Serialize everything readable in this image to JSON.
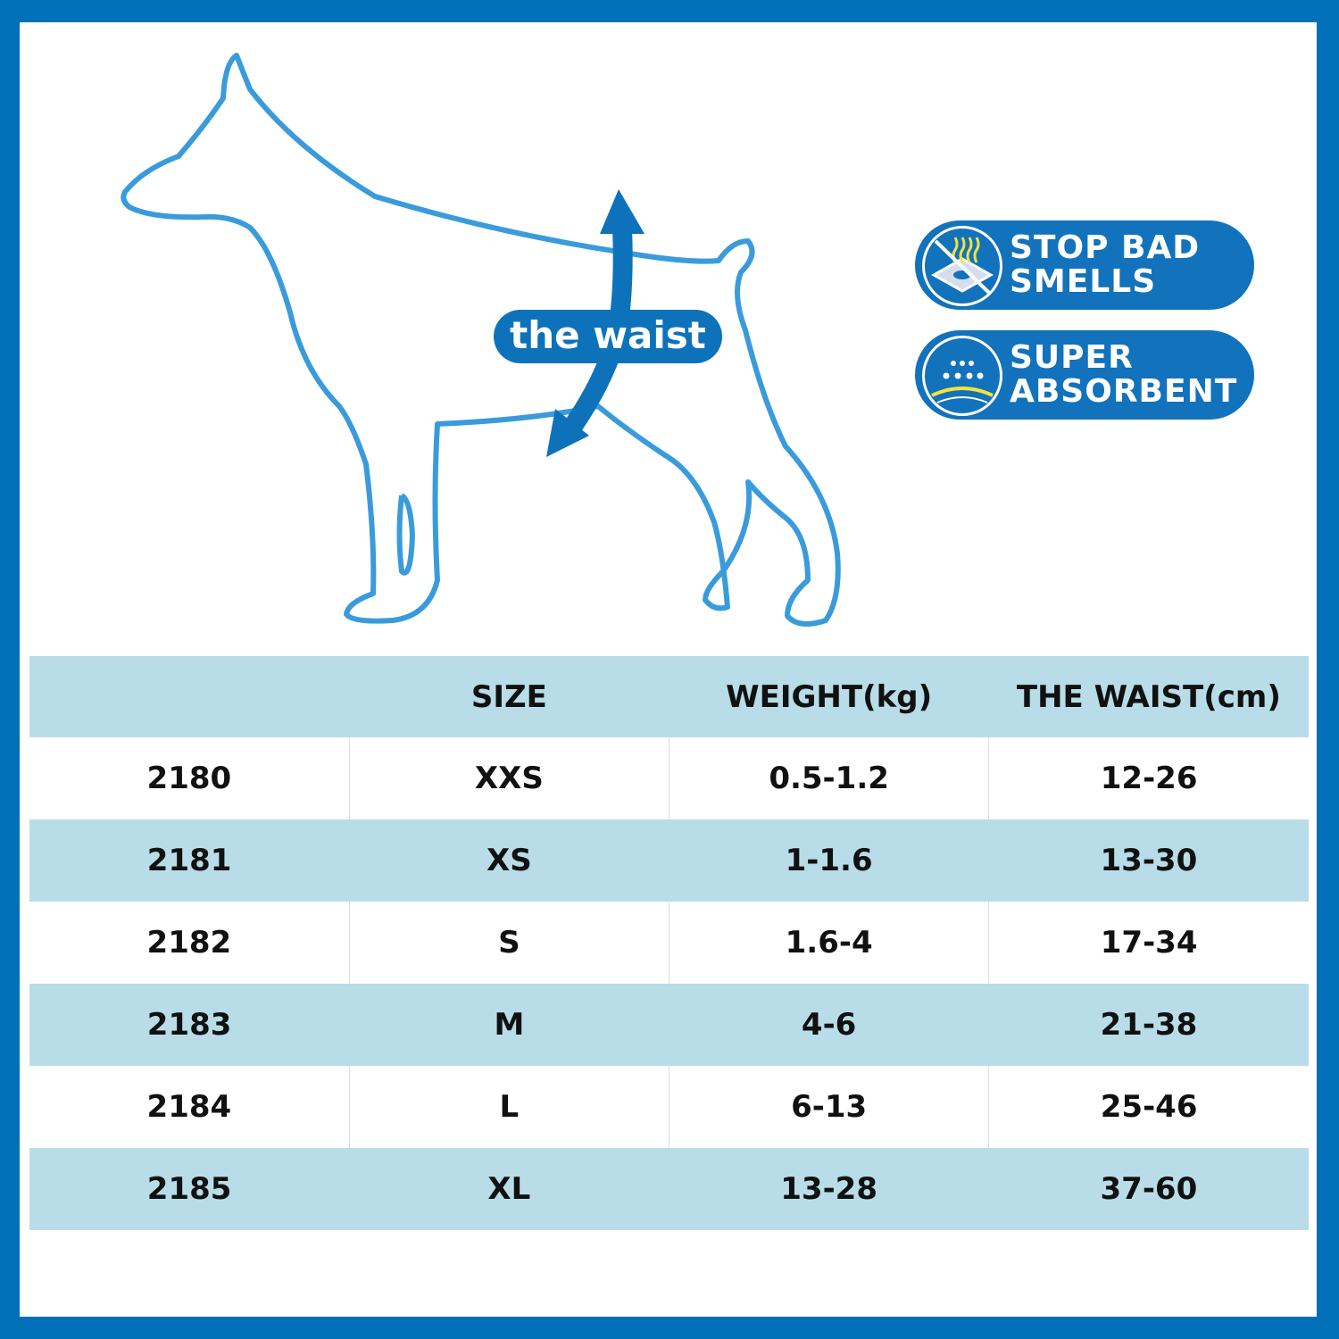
{
  "diagram": {
    "waist_label": "the waist"
  },
  "badges": [
    {
      "icon": "no-smell-icon",
      "line1": "STOP BAD",
      "line2": "SMELLS"
    },
    {
      "icon": "water-drops-icon",
      "line1": "SUPER",
      "line2": "ABSORBENT"
    }
  ],
  "table": {
    "headers": [
      "",
      "SIZE",
      "WEIGHT(kg)",
      "THE WAIST(cm)"
    ],
    "rows": [
      [
        "2180",
        "XXS",
        "0.5-1.2",
        "12-26"
      ],
      [
        "2181",
        "XS",
        "1-1.6",
        "13-30"
      ],
      [
        "2182",
        "S",
        "1.6-4",
        "17-34"
      ],
      [
        "2183",
        "M",
        "4-6",
        "21-38"
      ],
      [
        "2184",
        "L",
        "6-13",
        "25-46"
      ],
      [
        "2185",
        "XL",
        "13-28",
        "37-60"
      ]
    ]
  },
  "colors": {
    "frame": "#0270B9",
    "outline": "#3A9BDC",
    "row_alt": "#B8DDE8",
    "badge": "#1272BC"
  }
}
